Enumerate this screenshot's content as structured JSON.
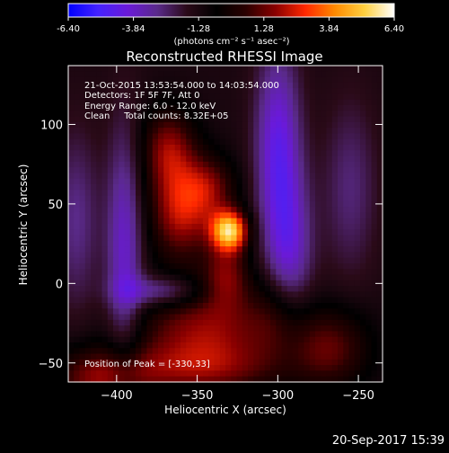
{
  "colorbar": {
    "labels": [
      "-6.40",
      "-3.84",
      "-1.28",
      "1.28",
      "3.84",
      "6.40"
    ],
    "units": "(photons cm⁻² s⁻¹ asec⁻²)",
    "colors": [
      "#0000ff",
      "#4422ff",
      "#6a1ad8",
      "#5a2a8a",
      "#2a0a18",
      "#000000",
      "#2a0000",
      "#8a0000",
      "#ff2800",
      "#ff8a00",
      "#ffd040",
      "#ffffff"
    ]
  },
  "title": "Reconstructed RHESSI Image",
  "info_lines": [
    "21-Oct-2015 13:53:54.000 to 14:03:54.000",
    "Detectors: 1F 5F 7F, Att 0",
    "Energy Range: 6.0 - 12.0 keV",
    "Clean     Total counts: 8.32E+05"
  ],
  "peak_text": "Position of Peak = [-330,33]",
  "footer": "20-Sep-2017 15:39",
  "chart_data": {
    "type": "heatmap",
    "title": "Reconstructed RHESSI Image",
    "xlabel": "Heliocentric X (arcsec)",
    "ylabel": "Heliocentric Y (arcsec)",
    "xlim": [
      -430,
      -235
    ],
    "ylim": [
      -62,
      137
    ],
    "xticks": [
      -400,
      -350,
      -300,
      -250
    ],
    "yticks": [
      -50,
      0,
      50,
      100
    ],
    "value_range": [
      -6.4,
      6.4
    ],
    "peak": [
      -330,
      33
    ],
    "blobs": [
      {
        "x": -330,
        "y": 33,
        "sx": 8,
        "sy": 9,
        "amp": 6.4
      },
      {
        "x": -360,
        "y": 45,
        "sx": 14,
        "sy": 22,
        "amp": 3.4
      },
      {
        "x": -368,
        "y": 85,
        "sx": 12,
        "sy": 18,
        "amp": 2.8
      },
      {
        "x": -342,
        "y": 60,
        "sx": 12,
        "sy": 14,
        "amp": 2.2
      },
      {
        "x": -332,
        "y": 5,
        "sx": 10,
        "sy": 14,
        "amp": 2.4
      },
      {
        "x": -345,
        "y": -30,
        "sx": 30,
        "sy": 20,
        "amp": 3.0
      },
      {
        "x": -350,
        "y": -55,
        "sx": 40,
        "sy": 12,
        "amp": 2.0
      },
      {
        "x": -410,
        "y": -60,
        "sx": 22,
        "sy": 14,
        "amp": 2.6
      },
      {
        "x": -268,
        "y": -40,
        "sx": 18,
        "sy": 18,
        "amp": 2.4
      },
      {
        "x": -300,
        "y": -20,
        "sx": 12,
        "sy": 18,
        "amp": 1.4
      },
      {
        "x": -395,
        "y": 22,
        "sx": 8,
        "sy": 55,
        "amp": -2.6
      },
      {
        "x": -300,
        "y": 85,
        "sx": 10,
        "sy": 45,
        "amp": -3.0
      },
      {
        "x": -372,
        "y": -5,
        "sx": 18,
        "sy": 7,
        "amp": -2.4
      },
      {
        "x": -292,
        "y": 20,
        "sx": 10,
        "sy": 35,
        "amp": -2.2
      },
      {
        "x": -425,
        "y": 40,
        "sx": 10,
        "sy": 40,
        "amp": -1.6
      },
      {
        "x": -255,
        "y": 60,
        "sx": 12,
        "sy": 40,
        "amp": -1.4
      }
    ],
    "background": -1.3
  }
}
